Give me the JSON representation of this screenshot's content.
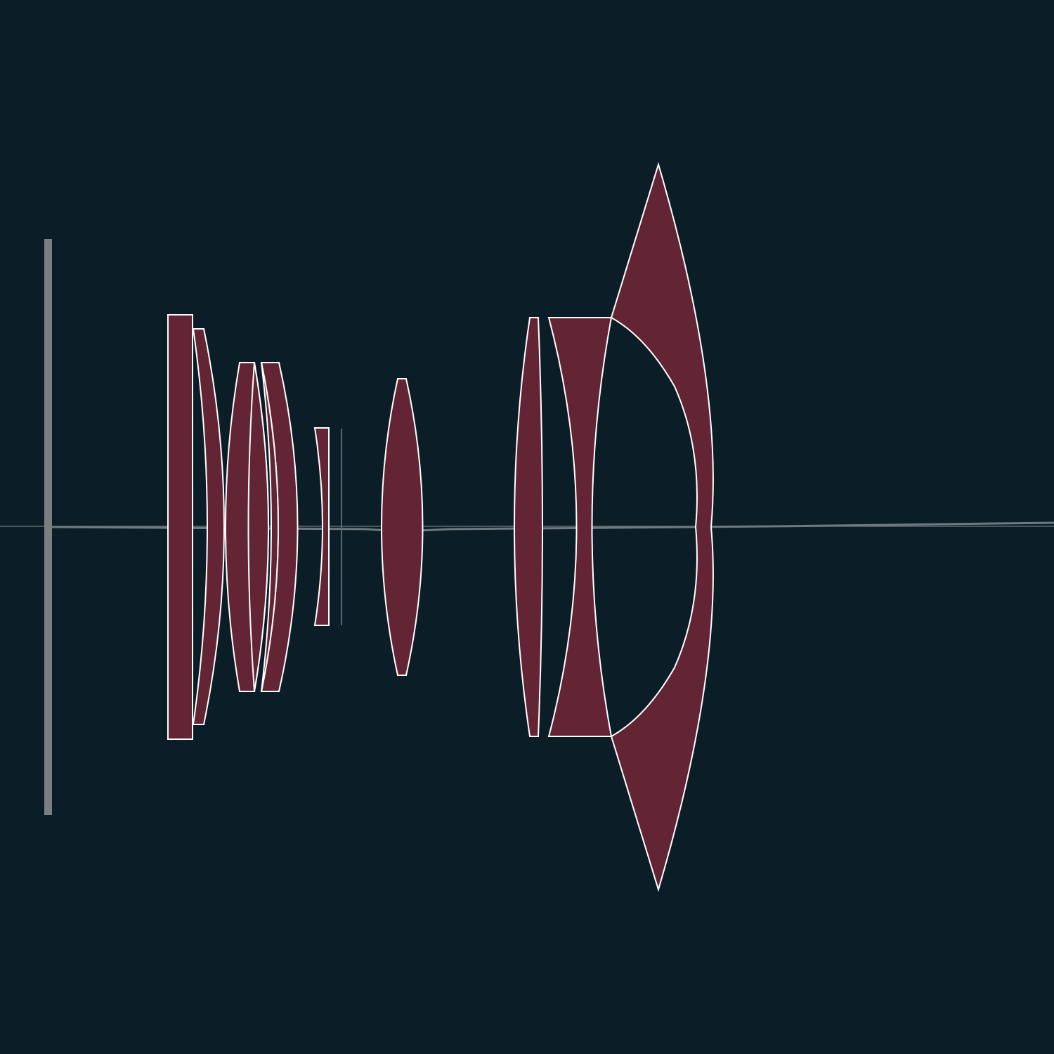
{
  "diagram": {
    "type": "optical-lens-cross-section",
    "element_count": 12,
    "colors": {
      "background": "#0b1d27",
      "lens_fill": "#632434",
      "lens_outline": "#ffffff",
      "optical_axis": "#6e7a80",
      "image_plane": "#7a7f80",
      "aperture_stop": "#5b6870"
    },
    "elements": [
      {
        "id": "rear-window"
      },
      {
        "id": "rear-meniscus"
      },
      {
        "id": "biconvex-group-a"
      },
      {
        "id": "meniscus-group-a"
      },
      {
        "id": "small-meniscus"
      },
      {
        "id": "mid-biconvex"
      },
      {
        "id": "front-biconvex-thin"
      },
      {
        "id": "front-meniscus-a"
      },
      {
        "id": "front-meniscus-b"
      }
    ],
    "parts": {
      "image_plane": "image-plane",
      "aperture_stop": "aperture-stop",
      "optical_axis": "optical-axis"
    }
  }
}
